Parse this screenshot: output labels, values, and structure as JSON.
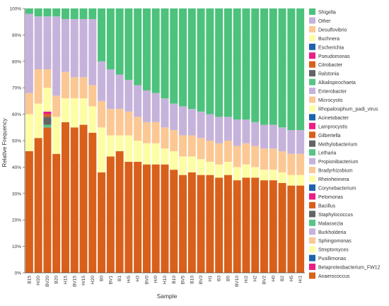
{
  "chart_data": {
    "type": "bar",
    "stacked": true,
    "normalized": true,
    "xlabel": "Sample",
    "ylabel": "Relative Frequency",
    "ylim": [
      0,
      100
    ],
    "y_tick_labels": [
      "0%",
      "10%",
      "20%",
      "30%",
      "40%",
      "50%",
      "60%",
      "70%",
      "80%",
      "90%",
      "100%"
    ],
    "legend_position": "right",
    "categories": [
      "B15",
      "H/20",
      "BV20",
      "B20",
      "H15",
      "BV15",
      "H/15",
      "H20",
      "B0",
      "BV1",
      "B1",
      "H/5",
      "H3",
      "BV0",
      "H/0",
      "H10",
      "B10",
      "BV5",
      "B10",
      "BV3",
      "H1",
      "B3",
      "B5",
      "BV10",
      "H/2",
      "H2",
      "BV2",
      "H0",
      "B2",
      "H5",
      "H/1"
    ],
    "legend": [
      {
        "name": "Shigella",
        "color": "#4cc27c"
      },
      {
        "name": "Other",
        "color": "#c6b3db"
      },
      {
        "name": "Desulfovibrio",
        "color": "#fbc894"
      },
      {
        "name": "Buchnera",
        "color": "#fdfda6"
      },
      {
        "name": "Escherichia",
        "color": "#1f62ad"
      },
      {
        "name": "Pseudomonas",
        "color": "#ea1e84"
      },
      {
        "name": "Citrobacter",
        "color": "#d8601b"
      },
      {
        "name": "Ralstonia",
        "color": "#646464"
      },
      {
        "name": "Alkalispirochaeta",
        "color": "#58c586"
      },
      {
        "name": "Enterobacter",
        "color": "#c6b3db"
      },
      {
        "name": "Microcystis",
        "color": "#fbc894"
      },
      {
        "name": "Rhopalosiphum_padi_virus",
        "color": "#fdfda6"
      },
      {
        "name": "Acinetobacter",
        "color": "#1f62ad"
      },
      {
        "name": "Lamprocystis",
        "color": "#ea1e84"
      },
      {
        "name": "Gilbertella",
        "color": "#d8601b"
      },
      {
        "name": "Methylobacterium",
        "color": "#646464"
      },
      {
        "name": "Letharia",
        "color": "#58c586"
      },
      {
        "name": "Propionibacterium",
        "color": "#c6b3db"
      },
      {
        "name": "Bradyrhizobium",
        "color": "#fbc894"
      },
      {
        "name": "Rheinheimera",
        "color": "#fdfda6"
      },
      {
        "name": "Corynebacterium",
        "color": "#1f62ad"
      },
      {
        "name": "Pelomonas",
        "color": "#ea1e84"
      },
      {
        "name": "Bacillus",
        "color": "#d8601b"
      },
      {
        "name": "Staphylococcus",
        "color": "#646464"
      },
      {
        "name": "Malassezia",
        "color": "#58c586"
      },
      {
        "name": "Burkholderia",
        "color": "#c6b3db"
      },
      {
        "name": "Sphingomonas",
        "color": "#fbc894"
      },
      {
        "name": "Streptomyces",
        "color": "#fdfda6"
      },
      {
        "name": "Pusillimonas",
        "color": "#1f62ad"
      },
      {
        "name": "Betaproteobacterium_FW12",
        "color": "#ea1e84"
      },
      {
        "name": "Anaerococcus",
        "color": "#d8601b"
      }
    ],
    "series": [
      {
        "name": "Shigella",
        "color": "#4cc27c",
        "values": [
          2,
          3,
          3,
          3,
          4,
          4,
          4,
          4,
          20,
          23,
          25,
          27,
          29,
          31,
          32,
          34,
          36,
          37,
          38,
          39,
          40,
          41,
          41,
          42,
          42,
          43,
          44,
          44,
          45,
          46,
          46
        ]
      },
      {
        "name": "Other",
        "color": "#c6b3db",
        "values": [
          30,
          20,
          20,
          30,
          20,
          22,
          22,
          25,
          15,
          15,
          13,
          12,
          12,
          12,
          11,
          11,
          10,
          11,
          10,
          10,
          10,
          10,
          9,
          10,
          9,
          9,
          9,
          9,
          9,
          9,
          9
        ]
      },
      {
        "name": "Desulfovibrio",
        "color": "#fbc894",
        "values": [
          8,
          13,
          7,
          8,
          10,
          8,
          8,
          8,
          10,
          10,
          10,
          9,
          9,
          8,
          8,
          8,
          8,
          8,
          8,
          8,
          8,
          8,
          8,
          8,
          8,
          8,
          8,
          8,
          8,
          8,
          8
        ]
      },
      {
        "name": "Buchnera",
        "color": "#fdfda6",
        "values": [
          14,
          13,
          9,
          14,
          9,
          11,
          10,
          10,
          17,
          8,
          6,
          10,
          8,
          8,
          8,
          6,
          7,
          7,
          6,
          6,
          5,
          5,
          5,
          5,
          5,
          4,
          4,
          4,
          4,
          4,
          4
        ]
      },
      {
        "name": "Escherichia",
        "color": "#1f62ad",
        "values": [
          0,
          0,
          0,
          0,
          0,
          0,
          0,
          0,
          0,
          0,
          0,
          0,
          0,
          0,
          0,
          0,
          0,
          0,
          0,
          0,
          0,
          0,
          0,
          0,
          0,
          0,
          0,
          0,
          0,
          0,
          0
        ]
      },
      {
        "name": "Pseudomonas",
        "color": "#ea1e84",
        "values": [
          0,
          0,
          1,
          0,
          0,
          0,
          0,
          0,
          0,
          0,
          0,
          0,
          0,
          0,
          0,
          0,
          0,
          0,
          0,
          0,
          0,
          0,
          0,
          0,
          0,
          0,
          0,
          0,
          0,
          0,
          0
        ]
      },
      {
        "name": "Citrobacter",
        "color": "#d8601b",
        "values": [
          0,
          0,
          1,
          0,
          0,
          0,
          0,
          0,
          0,
          0,
          0,
          0,
          0,
          0,
          0,
          0,
          0,
          0,
          0,
          0,
          0,
          0,
          0,
          0,
          0,
          0,
          0,
          0,
          0,
          0,
          0
        ]
      },
      {
        "name": "Ralstonia",
        "color": "#646464",
        "values": [
          0,
          0,
          3,
          0,
          0,
          0,
          0,
          0,
          0,
          0,
          0,
          0,
          0,
          0,
          0,
          0,
          0,
          0,
          0,
          0,
          0,
          0,
          0,
          0,
          0,
          0,
          0,
          0,
          0,
          0,
          0
        ]
      },
      {
        "name": "Alkalispirochaeta",
        "color": "#58c586",
        "values": [
          0,
          0,
          1,
          0,
          0,
          0,
          0,
          0,
          0,
          0,
          0,
          0,
          0,
          0,
          0,
          0,
          0,
          0,
          0,
          0,
          0,
          0,
          0,
          0,
          0,
          0,
          0,
          0,
          0,
          0,
          0
        ]
      },
      {
        "name": "Enterobacter",
        "color": "#c6b3db",
        "values": [
          0,
          0,
          0,
          0,
          0,
          0,
          0,
          0,
          0,
          0,
          0,
          0,
          0,
          0,
          0,
          0,
          0,
          0,
          0,
          0,
          0,
          0,
          0,
          0,
          0,
          0,
          0,
          0,
          0,
          0,
          0
        ]
      },
      {
        "name": "Microcystis",
        "color": "#fbc894",
        "values": [
          0,
          0,
          0,
          0,
          0,
          0,
          0,
          0,
          0,
          0,
          0,
          0,
          0,
          0,
          0,
          0,
          0,
          0,
          0,
          0,
          0,
          0,
          0,
          0,
          0,
          0,
          0,
          0,
          0,
          0,
          0
        ]
      },
      {
        "name": "Rhopalosiphum_padi_virus",
        "color": "#fdfda6",
        "values": [
          0,
          0,
          0,
          0,
          0,
          0,
          0,
          0,
          0,
          0,
          0,
          0,
          0,
          0,
          0,
          0,
          0,
          0,
          0,
          0,
          0,
          0,
          0,
          0,
          0,
          0,
          0,
          0,
          0,
          0,
          0
        ]
      },
      {
        "name": "Acinetobacter",
        "color": "#1f62ad",
        "values": [
          0,
          0,
          0,
          0,
          0,
          0,
          0,
          0,
          0,
          0,
          0,
          0,
          0,
          0,
          0,
          0,
          0,
          0,
          0,
          0,
          0,
          0,
          0,
          0,
          0,
          0,
          0,
          0,
          0,
          0,
          0
        ]
      },
      {
        "name": "Lamprocystis",
        "color": "#ea1e84",
        "values": [
          0,
          0,
          0,
          0,
          0,
          0,
          0,
          0,
          0,
          0,
          0,
          0,
          0,
          0,
          0,
          0,
          0,
          0,
          0,
          0,
          0,
          0,
          0,
          0,
          0,
          0,
          0,
          0,
          0,
          0,
          0
        ]
      },
      {
        "name": "Gilbertella",
        "color": "#d8601b",
        "values": [
          0,
          0,
          0,
          0,
          0,
          0,
          0,
          0,
          0,
          0,
          0,
          0,
          0,
          0,
          0,
          0,
          0,
          0,
          0,
          0,
          0,
          0,
          0,
          0,
          0,
          0,
          0,
          0,
          0,
          0,
          0
        ]
      },
      {
        "name": "Methylobacterium",
        "color": "#646464",
        "values": [
          0,
          0,
          0,
          0,
          0,
          0,
          0,
          0,
          0,
          0,
          0,
          0,
          0,
          0,
          0,
          0,
          0,
          0,
          0,
          0,
          0,
          0,
          0,
          0,
          0,
          0,
          0,
          0,
          0,
          0,
          0
        ]
      },
      {
        "name": "Letharia",
        "color": "#58c586",
        "values": [
          0,
          0,
          0,
          0,
          0,
          0,
          0,
          0,
          0,
          0,
          0,
          0,
          0,
          0,
          0,
          0,
          0,
          0,
          0,
          0,
          0,
          0,
          0,
          0,
          0,
          0,
          0,
          0,
          0,
          0,
          0
        ]
      },
      {
        "name": "Propionibacterium",
        "color": "#c6b3db",
        "values": [
          0,
          0,
          0,
          0,
          0,
          0,
          0,
          0,
          0,
          0,
          0,
          0,
          0,
          0,
          0,
          0,
          0,
          0,
          0,
          0,
          0,
          0,
          0,
          0,
          0,
          0,
          0,
          0,
          0,
          0,
          0
        ]
      },
      {
        "name": "Bradyrhizobium",
        "color": "#fbc894",
        "values": [
          0,
          0,
          0,
          0,
          0,
          0,
          0,
          0,
          0,
          0,
          0,
          0,
          0,
          0,
          0,
          0,
          0,
          0,
          0,
          0,
          0,
          0,
          0,
          0,
          0,
          0,
          0,
          0,
          0,
          0,
          0
        ]
      },
      {
        "name": "Rheinheimera",
        "color": "#fdfda6",
        "values": [
          0,
          0,
          0,
          0,
          0,
          0,
          0,
          0,
          0,
          0,
          0,
          0,
          0,
          0,
          0,
          0,
          0,
          0,
          0,
          0,
          0,
          0,
          0,
          0,
          0,
          0,
          0,
          0,
          0,
          0,
          0
        ]
      },
      {
        "name": "Corynebacterium",
        "color": "#1f62ad",
        "values": [
          0,
          0,
          0,
          0,
          0,
          0,
          0,
          0,
          0,
          0,
          0,
          0,
          0,
          0,
          0,
          0,
          0,
          0,
          0,
          0,
          0,
          0,
          0,
          0,
          0,
          0,
          0,
          0,
          0,
          0,
          0
        ]
      },
      {
        "name": "Pelomonas",
        "color": "#ea1e84",
        "values": [
          0,
          0,
          0,
          0,
          0,
          0,
          0,
          0,
          0,
          0,
          0,
          0,
          0,
          0,
          0,
          0,
          0,
          0,
          0,
          0,
          0,
          0,
          0,
          0,
          0,
          0,
          0,
          0,
          0,
          0,
          0
        ]
      },
      {
        "name": "Bacillus",
        "color": "#d8601b",
        "values": [
          0,
          0,
          0,
          0,
          0,
          0,
          0,
          0,
          0,
          0,
          0,
          0,
          0,
          0,
          0,
          0,
          0,
          0,
          0,
          0,
          0,
          0,
          0,
          0,
          0,
          0,
          0,
          0,
          0,
          0,
          0
        ]
      },
      {
        "name": "Staphylococcus",
        "color": "#646464",
        "values": [
          0,
          0,
          0,
          0,
          0,
          0,
          0,
          0,
          0,
          0,
          0,
          0,
          0,
          0,
          0,
          0,
          0,
          0,
          0,
          0,
          0,
          0,
          0,
          0,
          0,
          0,
          0,
          0,
          0,
          0,
          0
        ]
      },
      {
        "name": "Malassezia",
        "color": "#58c586",
        "values": [
          0,
          0,
          0,
          0,
          0,
          0,
          0,
          0,
          0,
          0,
          0,
          0,
          0,
          0,
          0,
          0,
          0,
          0,
          0,
          0,
          0,
          0,
          0,
          0,
          0,
          0,
          0,
          0,
          0,
          0,
          0
        ]
      },
      {
        "name": "Burkholderia",
        "color": "#c6b3db",
        "values": [
          0,
          0,
          0,
          0,
          0,
          0,
          0,
          0,
          0,
          0,
          0,
          0,
          0,
          0,
          0,
          0,
          0,
          0,
          0,
          0,
          0,
          0,
          0,
          0,
          0,
          0,
          0,
          0,
          0,
          0,
          0
        ]
      },
      {
        "name": "Sphingomonas",
        "color": "#fbc894",
        "values": [
          0,
          0,
          0,
          0,
          0,
          0,
          0,
          0,
          0,
          0,
          0,
          0,
          0,
          0,
          0,
          0,
          0,
          0,
          0,
          0,
          0,
          0,
          0,
          0,
          0,
          0,
          0,
          0,
          0,
          0,
          0
        ]
      },
      {
        "name": "Streptomyces",
        "color": "#fdfda6",
        "values": [
          0,
          0,
          0,
          0,
          0,
          0,
          0,
          0,
          0,
          0,
          0,
          0,
          0,
          0,
          0,
          0,
          0,
          0,
          0,
          0,
          0,
          0,
          0,
          0,
          0,
          0,
          0,
          0,
          0,
          0,
          0
        ]
      },
      {
        "name": "Pusillimonas",
        "color": "#1f62ad",
        "values": [
          0,
          0,
          0,
          0,
          0,
          0,
          0,
          0,
          0,
          0,
          0,
          0,
          0,
          0,
          0,
          0,
          0,
          0,
          0,
          0,
          0,
          0,
          0,
          0,
          0,
          0,
          0,
          0,
          0,
          0,
          0
        ]
      },
      {
        "name": "Betaproteobacterium_FW12",
        "color": "#ea1e84",
        "values": [
          0,
          0,
          0,
          0,
          0,
          0,
          0,
          0,
          0,
          0,
          0,
          0,
          0,
          0,
          0,
          0,
          0,
          0,
          0,
          0,
          0,
          0,
          0,
          0,
          0,
          0,
          0,
          0,
          0,
          0,
          0
        ]
      },
      {
        "name": "Anaerococcus",
        "color": "#d8601b",
        "values": [
          46,
          51,
          55,
          45,
          57,
          55,
          56,
          53,
          38,
          44,
          46,
          42,
          42,
          41,
          41,
          41,
          39,
          37,
          38,
          37,
          37,
          36,
          37,
          35,
          36,
          36,
          35,
          35,
          34,
          33,
          33
        ]
      }
    ]
  }
}
